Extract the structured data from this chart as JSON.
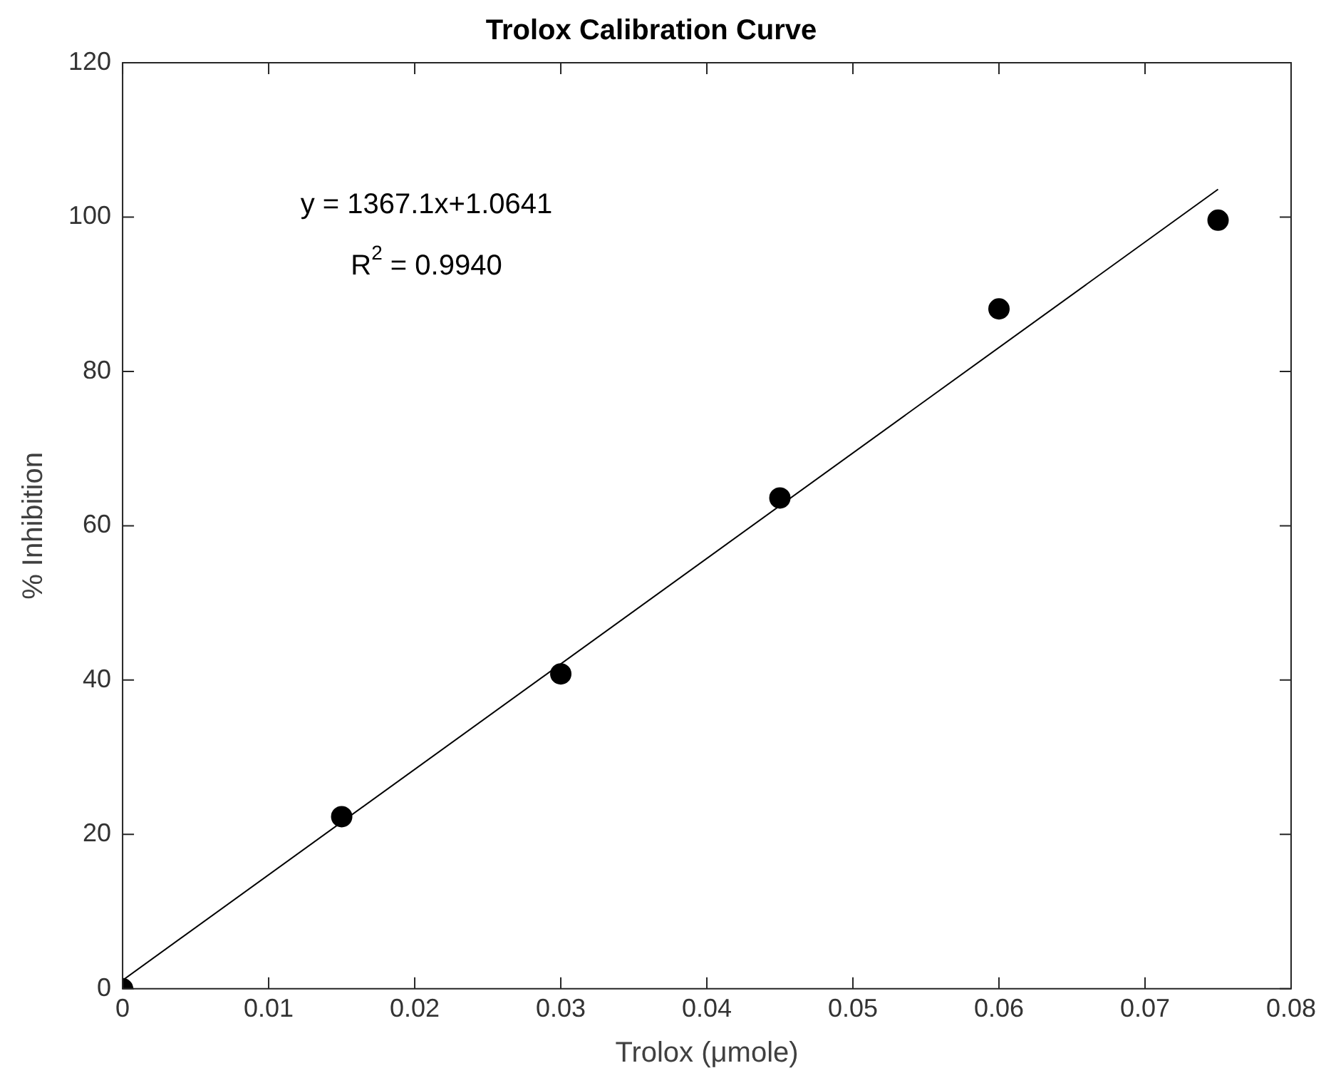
{
  "chart_data": {
    "type": "scatter",
    "title": "Trolox Calibration Curve",
    "xlabel": "Trolox (μmole)",
    "ylabel": "% Inhibition",
    "x": [
      0,
      0.015,
      0.03,
      0.045,
      0.06,
      0.075
    ],
    "series": [
      {
        "color": "#000000",
        "marker": "circle",
        "values": [
          0,
          22.3,
          40.8,
          63.6,
          88.1,
          99.6
        ]
      },
      {
        "type": "line",
        "color": "#000000",
        "marker": "none",
        "x": [
          0,
          0.075
        ],
        "values": [
          1.1,
          103.6
        ]
      }
    ],
    "xlim": [
      0,
      0.08
    ],
    "xticks": [
      0,
      0.01,
      0.02,
      0.03,
      0.04,
      0.05,
      0.06,
      0.07,
      0.08
    ],
    "ylim": [
      0,
      120
    ],
    "yticks": [
      0,
      20,
      40,
      60,
      80,
      100,
      120
    ],
    "annotations": [
      "y = 1367.1x+1.0641",
      "R$^{2}$ = 0.9940"
    ]
  }
}
